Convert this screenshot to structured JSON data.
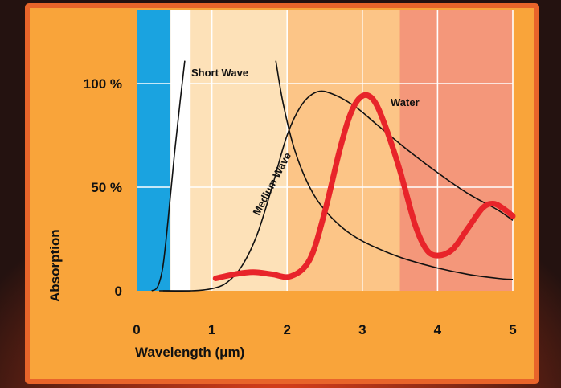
{
  "colors": {
    "panel": "#f9a43a",
    "panel_border": "#e8642a",
    "grid": "#ffffff",
    "uv_band": "#1aa3e0",
    "visible_band": "#ffffff",
    "short_wave_band": "#fde1b8",
    "medium_wave_band": "#fcc587",
    "long_wave_band": "#f4977a",
    "curve": "#111111",
    "water": "#e8242a"
  },
  "chart_data": {
    "type": "line",
    "xlabel": "Wavelength (μm)",
    "ylabel": "Absorption",
    "xlim": [
      0,
      5
    ],
    "ylim": [
      0,
      100
    ],
    "x_ticks": [
      "0",
      "1",
      "2",
      "3",
      "4",
      "5"
    ],
    "x_tick_values": [
      0,
      1,
      2,
      3,
      4,
      5
    ],
    "y_ticks": [
      "0",
      "50 %",
      "100 %"
    ],
    "y_tick_values": [
      0,
      50,
      100
    ],
    "grid": true,
    "bands": [
      {
        "from": 0.0,
        "to": 0.45,
        "color": "#1aa3e0"
      },
      {
        "from": 0.45,
        "to": 0.72,
        "color": "#ffffff"
      },
      {
        "from": 0.72,
        "to": 2.0,
        "color": "#fde1b8"
      },
      {
        "from": 2.0,
        "to": 3.5,
        "color": "#fcc587"
      },
      {
        "from": 3.5,
        "to": 5.0,
        "color": "#f4977a"
      }
    ],
    "series": [
      {
        "name": "Short Wave",
        "x": [
          0.2,
          0.28,
          0.35,
          0.42,
          0.5,
          0.58,
          0.64
        ],
        "y": [
          0,
          2,
          12,
          35,
          65,
          92,
          111
        ],
        "x_lower": [
          0.3,
          0.72
        ],
        "y_lower": [
          0,
          0
        ],
        "x_upper": [
          1.85,
          1.95,
          2.1,
          2.3,
          2.5,
          2.75,
          3.0,
          3.3,
          3.6,
          4.0,
          4.4,
          4.8,
          5.0
        ],
        "y_upper": [
          111,
          90,
          68,
          50,
          39,
          30,
          24,
          19,
          15,
          11,
          8,
          6,
          5.5
        ]
      },
      {
        "name": "Medium Wave",
        "x": [
          1.0,
          1.2,
          1.4,
          1.6,
          1.8,
          2.0,
          2.2,
          2.4,
          2.6,
          2.9,
          3.2,
          3.6,
          4.0,
          4.4,
          4.8,
          5.0
        ],
        "y": [
          1,
          4,
          12,
          27,
          50,
          75,
          90,
          96,
          95,
          89,
          80,
          68,
          57,
          47,
          39,
          34
        ],
        "x_pre": [
          0.35,
          0.72,
          1.0
        ],
        "y_pre": [
          0,
          0,
          1
        ]
      },
      {
        "name": "Water",
        "x": [
          1.05,
          1.3,
          1.55,
          1.8,
          2.05,
          2.3,
          2.5,
          2.7,
          2.85,
          3.0,
          3.15,
          3.3,
          3.5,
          3.7,
          3.85,
          4.0,
          4.2,
          4.4,
          4.6,
          4.75,
          4.9,
          5.0
        ],
        "y": [
          6,
          8,
          9,
          8,
          7,
          15,
          38,
          68,
          86,
          94,
          92,
          80,
          58,
          32,
          20,
          17,
          20,
          30,
          40,
          42,
          39,
          36
        ]
      }
    ],
    "labels": {
      "short_wave": "Short Wave",
      "medium_wave": "Medium Wave",
      "water": "Water"
    }
  }
}
